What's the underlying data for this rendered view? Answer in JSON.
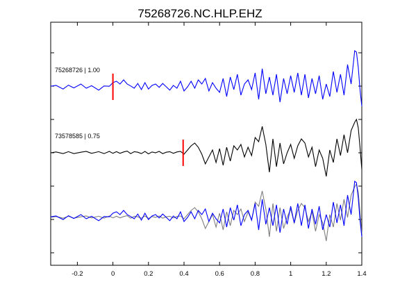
{
  "chart_data": {
    "type": "line",
    "title": "75268726.NC.HLP.EHZ",
    "xlabel": "",
    "ylabel": "",
    "xlim": [
      -0.35,
      1.4
    ],
    "xticks": [
      -0.2,
      0,
      0.2,
      0.4,
      0.6,
      0.8,
      1,
      1.2,
      1.4
    ],
    "xtick_labels": [
      "-0.2",
      "0",
      "0.2",
      "0.4",
      "0.6",
      "0.8",
      "1",
      "1.2",
      "1.4"
    ],
    "grid": false,
    "series_colors": {
      "primary": "#0000ff",
      "secondary": "#000000",
      "overlay_gray": "#7f7f7f",
      "pick": "#ff0000"
    },
    "traces": [
      {
        "label": "75268726 | 1.00",
        "color": "#0000ff",
        "pick_x": 0.0,
        "x": [
          -0.35,
          -0.32,
          -0.28,
          -0.25,
          -0.22,
          -0.18,
          -0.15,
          -0.12,
          -0.08,
          -0.05,
          -0.02,
          0.0,
          0.02,
          0.04,
          0.06,
          0.08,
          0.1,
          0.12,
          0.14,
          0.16,
          0.18,
          0.2,
          0.22,
          0.24,
          0.26,
          0.28,
          0.3,
          0.32,
          0.34,
          0.36,
          0.38,
          0.4,
          0.42,
          0.44,
          0.46,
          0.48,
          0.5,
          0.52,
          0.54,
          0.56,
          0.58,
          0.6,
          0.62,
          0.64,
          0.66,
          0.68,
          0.7,
          0.72,
          0.74,
          0.76,
          0.78,
          0.8,
          0.82,
          0.84,
          0.86,
          0.88,
          0.9,
          0.92,
          0.94,
          0.96,
          0.98,
          1.0,
          1.02,
          1.04,
          1.06,
          1.08,
          1.1,
          1.12,
          1.14,
          1.16,
          1.18,
          1.2,
          1.22,
          1.24,
          1.26,
          1.28,
          1.3,
          1.32,
          1.34,
          1.36,
          1.37,
          1.38,
          1.39,
          1.4
        ],
        "y": [
          0.02,
          0.05,
          -0.08,
          0.06,
          -0.04,
          0.1,
          -0.05,
          0.04,
          -0.12,
          0.03,
          0.02,
          0.15,
          0.2,
          0.1,
          0.25,
          0.1,
          0.03,
          -0.05,
          0.12,
          -0.1,
          0.15,
          -0.08,
          0.05,
          0.1,
          -0.02,
          0.12,
          0.0,
          -0.12,
          0.05,
          -0.05,
          0.2,
          -0.15,
          0.0,
          0.2,
          -0.05,
          0.25,
          0.1,
          0.3,
          -0.15,
          0.15,
          -0.05,
          -0.2,
          0.3,
          -0.35,
          0.35,
          -0.1,
          0.45,
          -0.3,
          0.1,
          0.25,
          -0.1,
          0.5,
          -0.45,
          0.65,
          -0.25,
          0.35,
          -0.3,
          0.45,
          -0.55,
          0.3,
          -0.25,
          0.4,
          -0.2,
          0.5,
          -0.3,
          0.45,
          -0.4,
          0.3,
          -0.25,
          0.4,
          -0.45,
          0.1,
          -0.35,
          0.55,
          -0.2,
          0.45,
          -0.3,
          0.8,
          0.1,
          1.3,
          1.25,
          0.7,
          -0.1,
          -0.7
        ]
      },
      {
        "label": "73578585 | 0.75",
        "color": "#000000",
        "pick_x": 0.395,
        "x": [
          -0.35,
          -0.32,
          -0.28,
          -0.25,
          -0.22,
          -0.18,
          -0.15,
          -0.12,
          -0.08,
          -0.05,
          -0.02,
          0.0,
          0.02,
          0.04,
          0.06,
          0.08,
          0.1,
          0.12,
          0.14,
          0.16,
          0.18,
          0.2,
          0.22,
          0.24,
          0.26,
          0.28,
          0.3,
          0.32,
          0.34,
          0.36,
          0.38,
          0.4,
          0.42,
          0.44,
          0.46,
          0.48,
          0.5,
          0.52,
          0.54,
          0.56,
          0.58,
          0.6,
          0.62,
          0.64,
          0.66,
          0.68,
          0.7,
          0.72,
          0.74,
          0.76,
          0.78,
          0.8,
          0.82,
          0.84,
          0.86,
          0.88,
          0.9,
          0.92,
          0.94,
          0.96,
          0.98,
          1.0,
          1.02,
          1.04,
          1.06,
          1.08,
          1.1,
          1.12,
          1.14,
          1.16,
          1.18,
          1.2,
          1.22,
          1.24,
          1.26,
          1.28,
          1.3,
          1.32,
          1.34,
          1.36,
          1.37,
          1.38,
          1.39,
          1.4
        ],
        "y": [
          0.0,
          0.03,
          -0.03,
          0.04,
          -0.03,
          0.02,
          0.05,
          -0.02,
          0.04,
          -0.03,
          0.05,
          -0.02,
          0.04,
          -0.02,
          0.03,
          0.06,
          -0.03,
          0.04,
          0.02,
          -0.03,
          0.05,
          -0.04,
          0.03,
          0.0,
          0.05,
          -0.03,
          0.02,
          0.04,
          -0.02,
          0.03,
          0.05,
          -0.05,
          0.1,
          0.25,
          0.35,
          0.2,
          -0.05,
          -0.4,
          -0.15,
          0.1,
          -0.35,
          0.15,
          -0.45,
          0.2,
          -0.3,
          0.25,
          0.1,
          0.3,
          -0.15,
          0.2,
          -0.1,
          0.55,
          0.4,
          0.95,
          0.3,
          -0.7,
          0.5,
          -0.5,
          0.35,
          -0.4,
          0.0,
          0.3,
          -0.2,
          0.25,
          0.5,
          0.35,
          -0.15,
          0.2,
          -0.5,
          0.1,
          -0.2,
          -0.85,
          0.1,
          -0.35,
          0.5,
          -0.1,
          0.65,
          0.0,
          0.8,
          1.1,
          1.2,
          0.9,
          0.2,
          -0.6
        ]
      }
    ]
  }
}
